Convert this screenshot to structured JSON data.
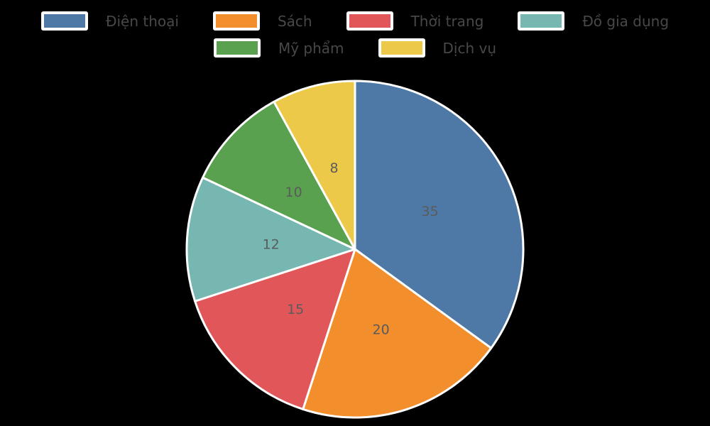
{
  "figure": {
    "background_color": "#000000"
  },
  "chart_data": {
    "type": "pie",
    "labels": [
      "Điện thoại",
      "Sách",
      "Thời trang",
      "Đồ gia dụng",
      "Mỹ phẩm",
      "Dịch vụ"
    ],
    "values": [
      35,
      20,
      15,
      12,
      10,
      8
    ],
    "value_labels": [
      "35",
      "20",
      "15",
      "12",
      "10",
      "8"
    ],
    "colors": [
      "#4e79a7",
      "#f28e2b",
      "#e15759",
      "#76b7b2",
      "#59a14f",
      "#edc949"
    ],
    "start_angle": 90,
    "direction": "clockwise",
    "wedge_edge_color": "#ffffff",
    "value_label_color": "#5b5b5b",
    "value_label_distance": 0.5,
    "legend_position": "top",
    "legend_rows": [
      [
        0,
        1,
        2,
        3
      ],
      [
        4,
        5
      ]
    ],
    "legend_text_color": "#484848",
    "title": ""
  }
}
